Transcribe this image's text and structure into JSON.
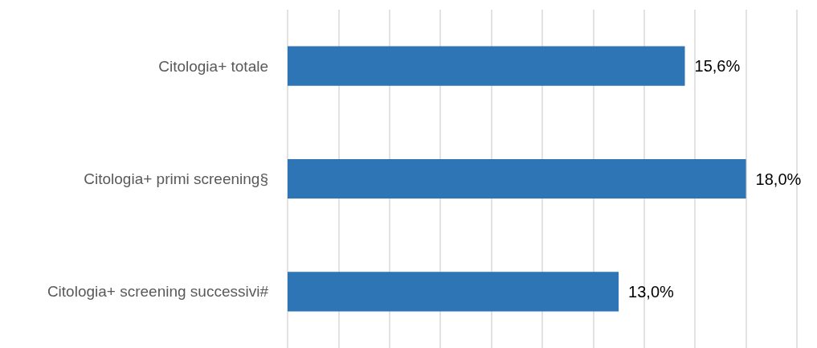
{
  "chart_data": {
    "type": "bar",
    "orientation": "horizontal",
    "categories": [
      "Citologia+ totale",
      "Citologia+ primi screening§",
      "Citologia+ screening successivi#"
    ],
    "values": [
      15.6,
      18.0,
      13.0
    ],
    "value_labels": [
      "15,6%",
      "18,0%",
      "13,0%"
    ],
    "color": "#2e75b6",
    "xlim": [
      0,
      20
    ],
    "xticks": [
      {
        "value": 0,
        "label": null
      },
      {
        "value": 2,
        "label": null
      },
      {
        "value": 4,
        "label": null
      },
      {
        "value": 6,
        "label": null
      },
      {
        "value": 8,
        "label": null
      },
      {
        "value": 10,
        "label": null
      },
      {
        "value": 12,
        "label": null
      },
      {
        "value": 14,
        "label": null
      },
      {
        "value": 16,
        "label": null
      },
      {
        "value": 18,
        "label": null
      },
      {
        "value": 20,
        "label": null
      }
    ],
    "grid": "x",
    "tick_labels": "y"
  }
}
